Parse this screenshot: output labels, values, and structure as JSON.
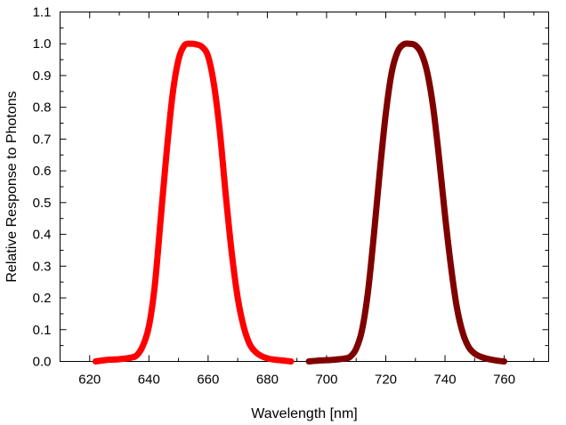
{
  "chart_data": {
    "type": "line",
    "title": "",
    "xlabel": "Wavelength [nm]",
    "ylabel": "Relative Response to Photons",
    "xlim": [
      610,
      775
    ],
    "ylim": [
      0,
      1.1
    ],
    "xticks": [
      620,
      640,
      660,
      680,
      700,
      720,
      740,
      760
    ],
    "yticks": [
      0.0,
      0.1,
      0.2,
      0.3,
      0.4,
      0.5,
      0.6,
      0.7,
      0.8,
      0.9,
      1.0,
      1.1
    ],
    "ytick_labels": [
      "0.0",
      "0.1",
      "0.2",
      "0.3",
      "0.4",
      "0.5",
      "0.6",
      "0.7",
      "0.8",
      "0.9",
      "1.0",
      "1.1"
    ],
    "grid": false,
    "legend": false,
    "series": [
      {
        "color": "#ff0000",
        "x": [
          622,
          626,
          630,
          634,
          636,
          638,
          640,
          642,
          644,
          646,
          648,
          650,
          652,
          654,
          656,
          658,
          660,
          662,
          664,
          666,
          668,
          670,
          672,
          674,
          676,
          678,
          680,
          682,
          684,
          686,
          688
        ],
        "y": [
          0.0,
          0.005,
          0.007,
          0.012,
          0.02,
          0.05,
          0.11,
          0.24,
          0.45,
          0.66,
          0.84,
          0.95,
          0.995,
          1.0,
          0.998,
          0.99,
          0.96,
          0.87,
          0.72,
          0.52,
          0.34,
          0.2,
          0.11,
          0.055,
          0.03,
          0.017,
          0.01,
          0.006,
          0.004,
          0.002,
          0.0
        ]
      },
      {
        "color": "#800000",
        "x": [
          694,
          698,
          702,
          706,
          708,
          710,
          712,
          714,
          716,
          718,
          720,
          722,
          724,
          726,
          728,
          730,
          732,
          734,
          736,
          738,
          740,
          742,
          744,
          746,
          748,
          750,
          752,
          754,
          756,
          758,
          760
        ],
        "y": [
          0.0,
          0.003,
          0.005,
          0.009,
          0.015,
          0.04,
          0.1,
          0.22,
          0.4,
          0.6,
          0.78,
          0.91,
          0.975,
          0.998,
          1.0,
          0.995,
          0.97,
          0.91,
          0.8,
          0.64,
          0.46,
          0.3,
          0.17,
          0.09,
          0.045,
          0.025,
          0.015,
          0.009,
          0.005,
          0.002,
          0.0
        ]
      }
    ]
  }
}
